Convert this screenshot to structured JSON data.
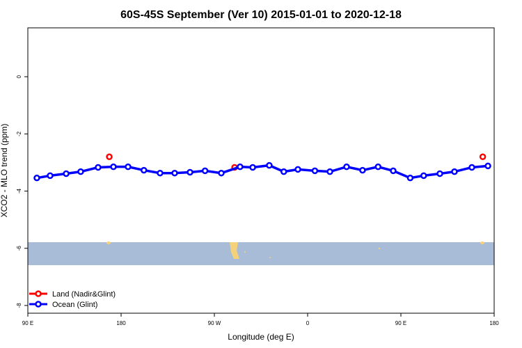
{
  "chart_data": {
    "type": "line",
    "title": "60S-45S September (Ver 10)   2015-01-01 to 2020-12-18",
    "x_label": "Longitude (deg E)",
    "y_label": "XCO2 - MLO trend (ppm)",
    "xlim": [
      90,
      540
    ],
    "ylim": [
      -8.27,
      1.71
    ],
    "xticks": [
      {
        "value": 90,
        "label": "90 E"
      },
      180,
      {
        "value": 270,
        "label": "90 W"
      },
      {
        "value": 360,
        "label": "0"
      },
      {
        "value": 450,
        "label": "90 E"
      },
      {
        "value": 540,
        "label": "180"
      }
    ],
    "yticks": [
      0,
      -2,
      -4,
      -6,
      -8
    ],
    "legend": "bottom-left",
    "series": [
      {
        "name": "Land (Nadir&Glint)",
        "color": "#ff0000",
        "x": [
          168.6,
          289.5,
          529
        ],
        "values": [
          -2.8,
          -3.17,
          -2.8
        ]
      },
      {
        "name": "Ocean (Glint)",
        "color": "#0000ff",
        "x": [
          98.7,
          111.5,
          127,
          141,
          157.8,
          172.6,
          186.7,
          202,
          217.6,
          231.7,
          246.5,
          261,
          276.7,
          294.8,
          307,
          323,
          337,
          350.6,
          367,
          381.5,
          397.6,
          413,
          428,
          442.6,
          459,
          472,
          487.6,
          501.7,
          518.5,
          534
        ],
        "values": [
          -3.54,
          -3.46,
          -3.39,
          -3.32,
          -3.17,
          -3.15,
          -3.15,
          -3.27,
          -3.37,
          -3.37,
          -3.34,
          -3.29,
          -3.37,
          -3.15,
          -3.17,
          -3.1,
          -3.32,
          -3.24,
          -3.29,
          -3.32,
          -3.15,
          -3.27,
          -3.15,
          -3.29,
          -3.54,
          -3.46,
          -3.39,
          -3.32,
          -3.17,
          -3.12
        ]
      }
    ]
  }
}
